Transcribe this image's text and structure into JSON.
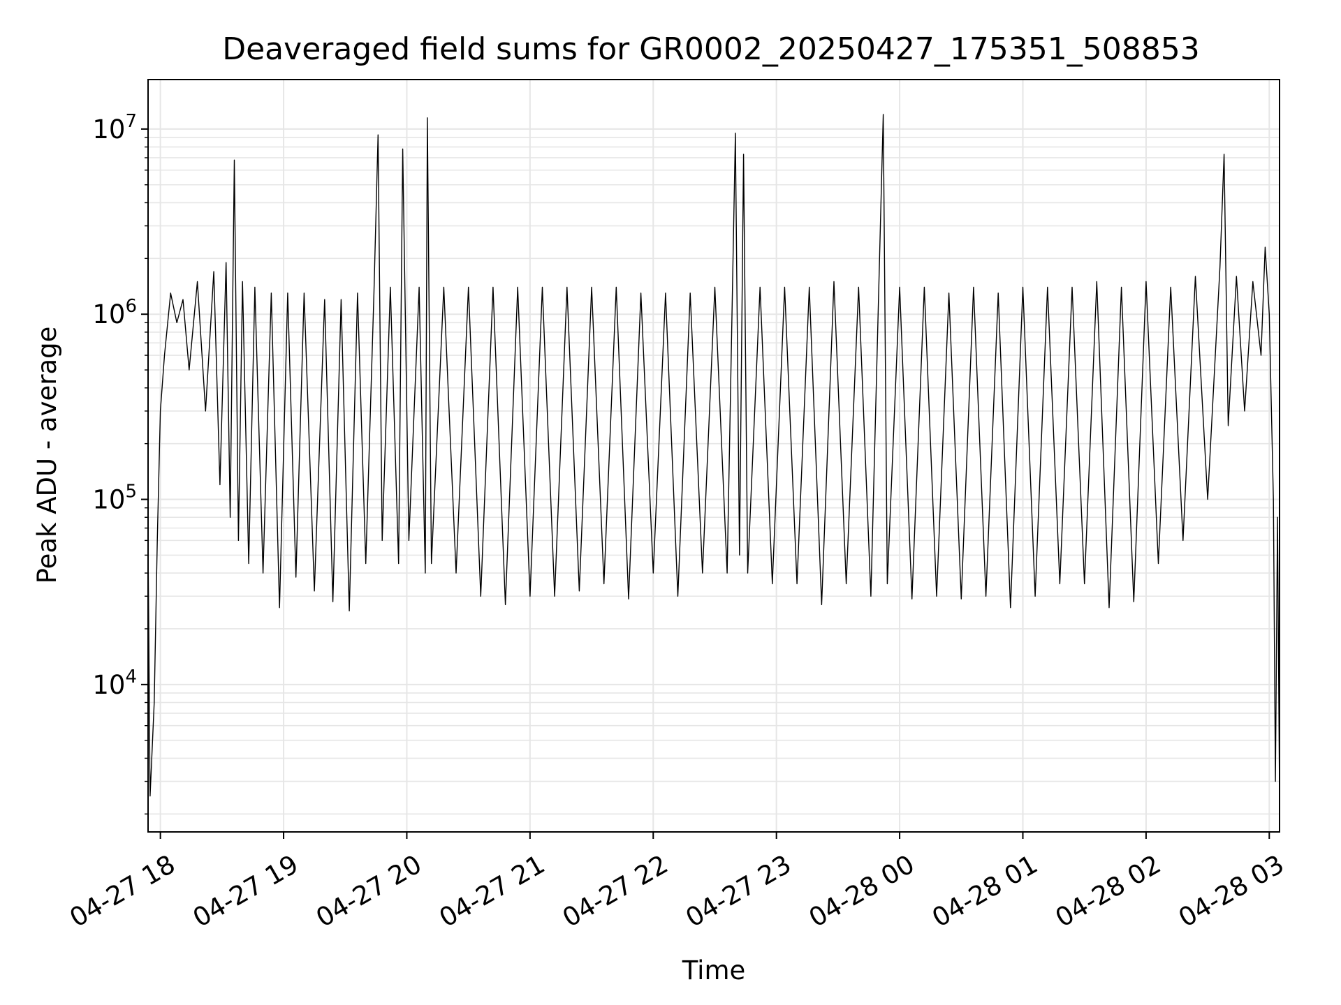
{
  "chart_data": {
    "type": "line",
    "title": "Deaveraged field sums for GR0002_20250427_175351_508853",
    "xlabel": "Time",
    "ylabel": "Peak ADU - average",
    "yscale": "log",
    "ylim": [
      1600,
      18500000
    ],
    "xlim": [
      "2025-04-27 17:54:00",
      "2025-04-28 03:05:00"
    ],
    "grid": true,
    "x_ticks": [
      "04-27 18",
      "04-27 19",
      "04-27 20",
      "04-27 21",
      "04-27 22",
      "04-27 23",
      "04-28 00",
      "04-28 01",
      "04-28 02",
      "04-28 03"
    ],
    "x_tick_times": [
      "2025-04-27 18:00:00",
      "2025-04-27 19:00:00",
      "2025-04-27 20:00:00",
      "2025-04-27 21:00:00",
      "2025-04-27 22:00:00",
      "2025-04-27 23:00:00",
      "2025-04-28 00:00:00",
      "2025-04-28 01:00:00",
      "2025-04-28 02:00:00",
      "2025-04-28 03:00:00"
    ],
    "y_ticks": [
      {
        "base": "10",
        "exp": "4",
        "value": 10000
      },
      {
        "base": "10",
        "exp": "5",
        "value": 100000
      },
      {
        "base": "10",
        "exp": "6",
        "value": 1000000
      },
      {
        "base": "10",
        "exp": "7",
        "value": 10000000
      }
    ],
    "series": [
      {
        "color": "#000000",
        "points": [
          [
            "2025-04-27 17:54:00",
            58000
          ],
          [
            "2025-04-27 17:55:00",
            2500
          ],
          [
            "2025-04-27 17:57:00",
            8000
          ],
          [
            "2025-04-27 17:58:30",
            60000
          ],
          [
            "2025-04-27 18:00:00",
            300000
          ],
          [
            "2025-04-27 18:02:00",
            600000
          ],
          [
            "2025-04-27 18:05:00",
            1300000
          ],
          [
            "2025-04-27 18:08:00",
            900000
          ],
          [
            "2025-04-27 18:11:00",
            1200000
          ],
          [
            "2025-04-27 18:14:00",
            500000
          ],
          [
            "2025-04-27 18:18:00",
            1500000
          ],
          [
            "2025-04-27 18:22:00",
            300000
          ],
          [
            "2025-04-27 18:26:00",
            1700000
          ],
          [
            "2025-04-27 18:29:00",
            120000
          ],
          [
            "2025-04-27 18:32:00",
            1900000
          ],
          [
            "2025-04-27 18:34:00",
            80000
          ],
          [
            "2025-04-27 18:36:00",
            6800000
          ],
          [
            "2025-04-27 18:38:00",
            60000
          ],
          [
            "2025-04-27 18:40:00",
            1500000
          ],
          [
            "2025-04-27 18:43:00",
            45000
          ],
          [
            "2025-04-27 18:46:00",
            1400000
          ],
          [
            "2025-04-27 18:50:00",
            40000
          ],
          [
            "2025-04-27 18:54:00",
            1300000
          ],
          [
            "2025-04-27 18:58:00",
            26000
          ],
          [
            "2025-04-27 19:02:00",
            1300000
          ],
          [
            "2025-04-27 19:06:00",
            38000
          ],
          [
            "2025-04-27 19:10:00",
            1300000
          ],
          [
            "2025-04-27 19:15:00",
            32000
          ],
          [
            "2025-04-27 19:20:00",
            1200000
          ],
          [
            "2025-04-27 19:24:00",
            28000
          ],
          [
            "2025-04-27 19:28:00",
            1200000
          ],
          [
            "2025-04-27 19:32:00",
            25000
          ],
          [
            "2025-04-27 19:36:00",
            1300000
          ],
          [
            "2025-04-27 19:40:00",
            45000
          ],
          [
            "2025-04-27 19:44:00",
            1300000
          ],
          [
            "2025-04-27 19:46:00",
            9300000
          ],
          [
            "2025-04-27 19:48:00",
            60000
          ],
          [
            "2025-04-27 19:52:00",
            1400000
          ],
          [
            "2025-04-27 19:56:00",
            45000
          ],
          [
            "2025-04-27 19:58:00",
            7800000
          ],
          [
            "2025-04-27 20:01:00",
            60000
          ],
          [
            "2025-04-27 20:06:00",
            1400000
          ],
          [
            "2025-04-27 20:09:00",
            40000
          ],
          [
            "2025-04-27 20:10:00",
            11500000
          ],
          [
            "2025-04-27 20:12:00",
            45000
          ],
          [
            "2025-04-27 20:18:00",
            1400000
          ],
          [
            "2025-04-27 20:24:00",
            40000
          ],
          [
            "2025-04-27 20:30:00",
            1400000
          ],
          [
            "2025-04-27 20:36:00",
            30000
          ],
          [
            "2025-04-27 20:42:00",
            1400000
          ],
          [
            "2025-04-27 20:48:00",
            27000
          ],
          [
            "2025-04-27 20:54:00",
            1400000
          ],
          [
            "2025-04-27 21:00:00",
            30000
          ],
          [
            "2025-04-27 21:06:00",
            1400000
          ],
          [
            "2025-04-27 21:12:00",
            30000
          ],
          [
            "2025-04-27 21:18:00",
            1400000
          ],
          [
            "2025-04-27 21:24:00",
            32000
          ],
          [
            "2025-04-27 21:30:00",
            1400000
          ],
          [
            "2025-04-27 21:36:00",
            35000
          ],
          [
            "2025-04-27 21:42:00",
            1400000
          ],
          [
            "2025-04-27 21:48:00",
            29000
          ],
          [
            "2025-04-27 21:54:00",
            1300000
          ],
          [
            "2025-04-27 22:00:00",
            40000
          ],
          [
            "2025-04-27 22:06:00",
            1300000
          ],
          [
            "2025-04-27 22:12:00",
            30000
          ],
          [
            "2025-04-27 22:18:00",
            1300000
          ],
          [
            "2025-04-27 22:24:00",
            40000
          ],
          [
            "2025-04-27 22:30:00",
            1400000
          ],
          [
            "2025-04-27 22:36:00",
            40000
          ],
          [
            "2025-04-27 22:40:00",
            9500000
          ],
          [
            "2025-04-27 22:42:00",
            50000
          ],
          [
            "2025-04-27 22:44:00",
            7300000
          ],
          [
            "2025-04-27 22:46:00",
            40000
          ],
          [
            "2025-04-27 22:52:00",
            1400000
          ],
          [
            "2025-04-27 22:58:00",
            35000
          ],
          [
            "2025-04-27 23:04:00",
            1400000
          ],
          [
            "2025-04-27 23:10:00",
            35000
          ],
          [
            "2025-04-27 23:16:00",
            1400000
          ],
          [
            "2025-04-27 23:22:00",
            27000
          ],
          [
            "2025-04-27 23:28:00",
            1500000
          ],
          [
            "2025-04-27 23:34:00",
            35000
          ],
          [
            "2025-04-27 23:40:00",
            1400000
          ],
          [
            "2025-04-27 23:46:00",
            30000
          ],
          [
            "2025-04-27 23:52:00",
            12000000
          ],
          [
            "2025-04-27 23:54:00",
            35000
          ],
          [
            "2025-04-28 00:00:00",
            1400000
          ],
          [
            "2025-04-28 00:06:00",
            29000
          ],
          [
            "2025-04-28 00:12:00",
            1400000
          ],
          [
            "2025-04-28 00:18:00",
            30000
          ],
          [
            "2025-04-28 00:24:00",
            1300000
          ],
          [
            "2025-04-28 00:30:00",
            29000
          ],
          [
            "2025-04-28 00:36:00",
            1400000
          ],
          [
            "2025-04-28 00:42:00",
            30000
          ],
          [
            "2025-04-28 00:48:00",
            1300000
          ],
          [
            "2025-04-28 00:54:00",
            26000
          ],
          [
            "2025-04-28 01:00:00",
            1400000
          ],
          [
            "2025-04-28 01:06:00",
            30000
          ],
          [
            "2025-04-28 01:12:00",
            1400000
          ],
          [
            "2025-04-28 01:18:00",
            35000
          ],
          [
            "2025-04-28 01:24:00",
            1400000
          ],
          [
            "2025-04-28 01:30:00",
            35000
          ],
          [
            "2025-04-28 01:36:00",
            1500000
          ],
          [
            "2025-04-28 01:42:00",
            26000
          ],
          [
            "2025-04-28 01:48:00",
            1400000
          ],
          [
            "2025-04-28 01:54:00",
            28000
          ],
          [
            "2025-04-28 02:00:00",
            1500000
          ],
          [
            "2025-04-28 02:06:00",
            45000
          ],
          [
            "2025-04-28 02:12:00",
            1400000
          ],
          [
            "2025-04-28 02:18:00",
            60000
          ],
          [
            "2025-04-28 02:24:00",
            1600000
          ],
          [
            "2025-04-28 02:30:00",
            100000
          ],
          [
            "2025-04-28 02:36:00",
            1800000
          ],
          [
            "2025-04-28 02:38:00",
            7300000
          ],
          [
            "2025-04-28 02:40:00",
            250000
          ],
          [
            "2025-04-28 02:44:00",
            1600000
          ],
          [
            "2025-04-28 02:48:00",
            300000
          ],
          [
            "2025-04-28 02:52:00",
            1500000
          ],
          [
            "2025-04-28 02:56:00",
            600000
          ],
          [
            "2025-04-28 02:58:00",
            2300000
          ],
          [
            "2025-04-28 03:00:00",
            1000000
          ],
          [
            "2025-04-28 03:02:00",
            100000
          ],
          [
            "2025-04-28 03:03:00",
            3000
          ],
          [
            "2025-04-28 03:04:00",
            80000
          ],
          [
            "2025-04-28 03:05:00",
            2400
          ]
        ]
      }
    ]
  }
}
